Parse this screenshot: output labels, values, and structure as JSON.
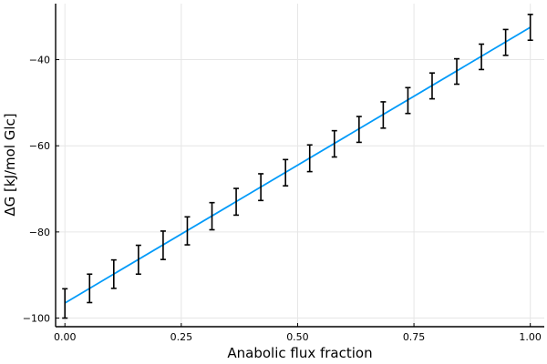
{
  "chart_data": {
    "type": "line",
    "title": "",
    "xlabel": "Anabolic flux fraction",
    "ylabel": "ΔG [kJ/mol Glc]",
    "xlim": [
      -0.02,
      1.03
    ],
    "ylim": [
      -102,
      -27
    ],
    "grid": true,
    "legend": "none",
    "x_ticks": [
      {
        "value": 0.0,
        "label": "0.00"
      },
      {
        "value": 0.25,
        "label": "0.25"
      },
      {
        "value": 0.5,
        "label": "0.50"
      },
      {
        "value": 0.75,
        "label": "0.75"
      },
      {
        "value": 1.0,
        "label": "1.00"
      }
    ],
    "y_ticks": [
      {
        "value": -100,
        "label": "−100"
      },
      {
        "value": -80,
        "label": "−80"
      },
      {
        "value": -60,
        "label": "−60"
      },
      {
        "value": -40,
        "label": "−40"
      }
    ],
    "series": [
      {
        "color": "#009af9",
        "line": {
          "x": [
            0.0,
            1.0
          ],
          "y": [
            -96.5,
            -32.5
          ]
        }
      }
    ],
    "error_bars": {
      "color": "#000000",
      "points": [
        {
          "x": 0.0,
          "y": -96.5,
          "low": -100.0,
          "high": -93.2
        },
        {
          "x": 0.053,
          "y": -93.1,
          "low": -96.4,
          "high": -89.8
        },
        {
          "x": 0.105,
          "y": -89.8,
          "low": -93.1,
          "high": -86.5
        },
        {
          "x": 0.158,
          "y": -86.4,
          "low": -89.8,
          "high": -83.1
        },
        {
          "x": 0.211,
          "y": -83.0,
          "low": -86.4,
          "high": -79.8
        },
        {
          "x": 0.263,
          "y": -79.7,
          "low": -83.0,
          "high": -76.5
        },
        {
          "x": 0.316,
          "y": -76.3,
          "low": -79.5,
          "high": -73.2
        },
        {
          "x": 0.368,
          "y": -73.0,
          "low": -76.1,
          "high": -69.9
        },
        {
          "x": 0.421,
          "y": -69.6,
          "low": -72.7,
          "high": -66.5
        },
        {
          "x": 0.474,
          "y": -66.2,
          "low": -69.3,
          "high": -63.2
        },
        {
          "x": 0.526,
          "y": -62.9,
          "low": -66.0,
          "high": -59.8
        },
        {
          "x": 0.579,
          "y": -59.5,
          "low": -62.6,
          "high": -56.5
        },
        {
          "x": 0.632,
          "y": -56.1,
          "low": -59.2,
          "high": -53.2
        },
        {
          "x": 0.684,
          "y": -52.8,
          "low": -55.9,
          "high": -49.8
        },
        {
          "x": 0.737,
          "y": -49.4,
          "low": -52.5,
          "high": -46.5
        },
        {
          "x": 0.789,
          "y": -46.1,
          "low": -49.1,
          "high": -43.1
        },
        {
          "x": 0.842,
          "y": -42.7,
          "low": -45.7,
          "high": -39.8
        },
        {
          "x": 0.895,
          "y": -39.3,
          "low": -42.3,
          "high": -36.4
        },
        {
          "x": 0.947,
          "y": -36.0,
          "low": -39.0,
          "high": -33.0
        },
        {
          "x": 1.0,
          "y": -32.5,
          "low": -35.5,
          "high": -29.5
        }
      ]
    }
  }
}
